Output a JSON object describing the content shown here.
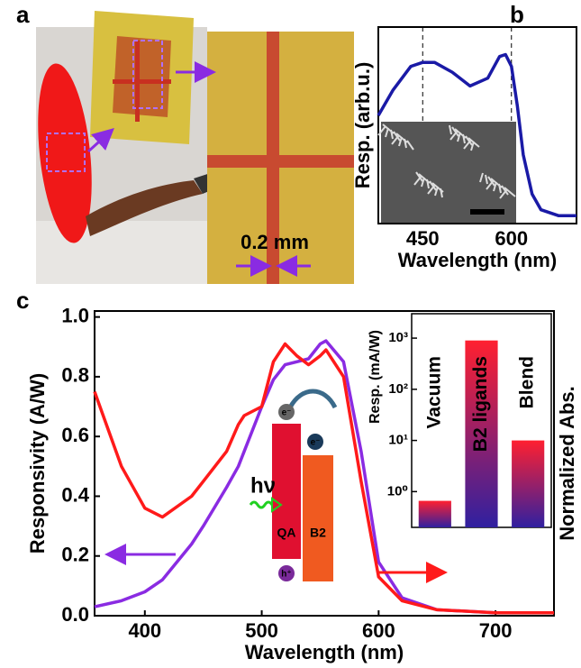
{
  "panel_a": {
    "label": "a",
    "scale_bar": "0.2 mm"
  },
  "diagram": {
    "photon": "hν",
    "donor": "QA",
    "acceptor": "B2",
    "electron_1": "e⁻",
    "electron_2": "e⁻",
    "hole": "h⁺"
  },
  "chart_data": [
    {
      "type": "line",
      "label": "b",
      "x_label": "Wavelength (nm)",
      "y_label": "Resp. (arb.u.)",
      "xlim": [
        375,
        710
      ],
      "ylim": [
        0,
        1
      ],
      "xticks": [
        450,
        600
      ],
      "vlines": [
        450,
        600
      ],
      "x": [
        375,
        400,
        430,
        450,
        470,
        500,
        530,
        560,
        580,
        590,
        600,
        610,
        620,
        635,
        650,
        680,
        710
      ],
      "series": [
        {
          "color": "#1a1aa6",
          "values": [
            0.55,
            0.68,
            0.8,
            0.82,
            0.82,
            0.77,
            0.7,
            0.74,
            0.85,
            0.86,
            0.8,
            0.6,
            0.35,
            0.15,
            0.07,
            0.04,
            0.04
          ]
        }
      ]
    },
    {
      "type": "line",
      "label": "c",
      "x_label": "Wavelength (nm)",
      "y_label": "Responsivity (A/W)",
      "y2_label": "Normalized Abs.",
      "xlim": [
        357,
        750
      ],
      "ylim": [
        0,
        1.02
      ],
      "y2lim": [
        0,
        1.02
      ],
      "xticks": [
        400,
        500,
        600,
        700
      ],
      "yticks": [
        {
          "value": 0,
          "label": "0.0"
        },
        0.2,
        0.4,
        0.6,
        0.8,
        {
          "value": 1,
          "label": "1.0"
        }
      ],
      "x": [
        357,
        380,
        400,
        415,
        440,
        450,
        470,
        480,
        485,
        500,
        510,
        520,
        530,
        540,
        550,
        555,
        570,
        585,
        600,
        620,
        650,
        700,
        750
      ],
      "series": [
        {
          "color": "#8a2be2",
          "values": [
            0.03,
            0.05,
            0.08,
            0.12,
            0.24,
            0.3,
            0.43,
            0.5,
            0.55,
            0.7,
            0.79,
            0.84,
            0.85,
            0.86,
            0.91,
            0.92,
            0.85,
            0.55,
            0.18,
            0.06,
            0.02,
            0.01,
            0.01
          ]
        },
        {
          "color": "#ff1a1a",
          "axis": "y2",
          "values": [
            0.75,
            0.5,
            0.36,
            0.33,
            0.4,
            0.45,
            0.55,
            0.64,
            0.67,
            0.7,
            0.85,
            0.91,
            0.87,
            0.84,
            0.87,
            0.89,
            0.8,
            0.45,
            0.13,
            0.05,
            0.02,
            0.01,
            0.01
          ]
        }
      ]
    },
    {
      "type": "bar",
      "y_label": "Resp. (mA/W)",
      "log_scale": true,
      "gradient": [
        "#ff2030",
        "#3020a0"
      ],
      "ylim": [
        0.2,
        3000
      ],
      "yticks": [
        {
          "value": 1,
          "label": "10⁰"
        },
        {
          "value": 10,
          "label": "10¹"
        },
        {
          "value": 100,
          "label": "10²"
        },
        {
          "value": 1000,
          "label": "10³"
        }
      ],
      "categories": [
        "Vacuum",
        "B2 ligands",
        "Blend"
      ],
      "values": [
        0.66,
        900,
        10
      ]
    }
  ]
}
